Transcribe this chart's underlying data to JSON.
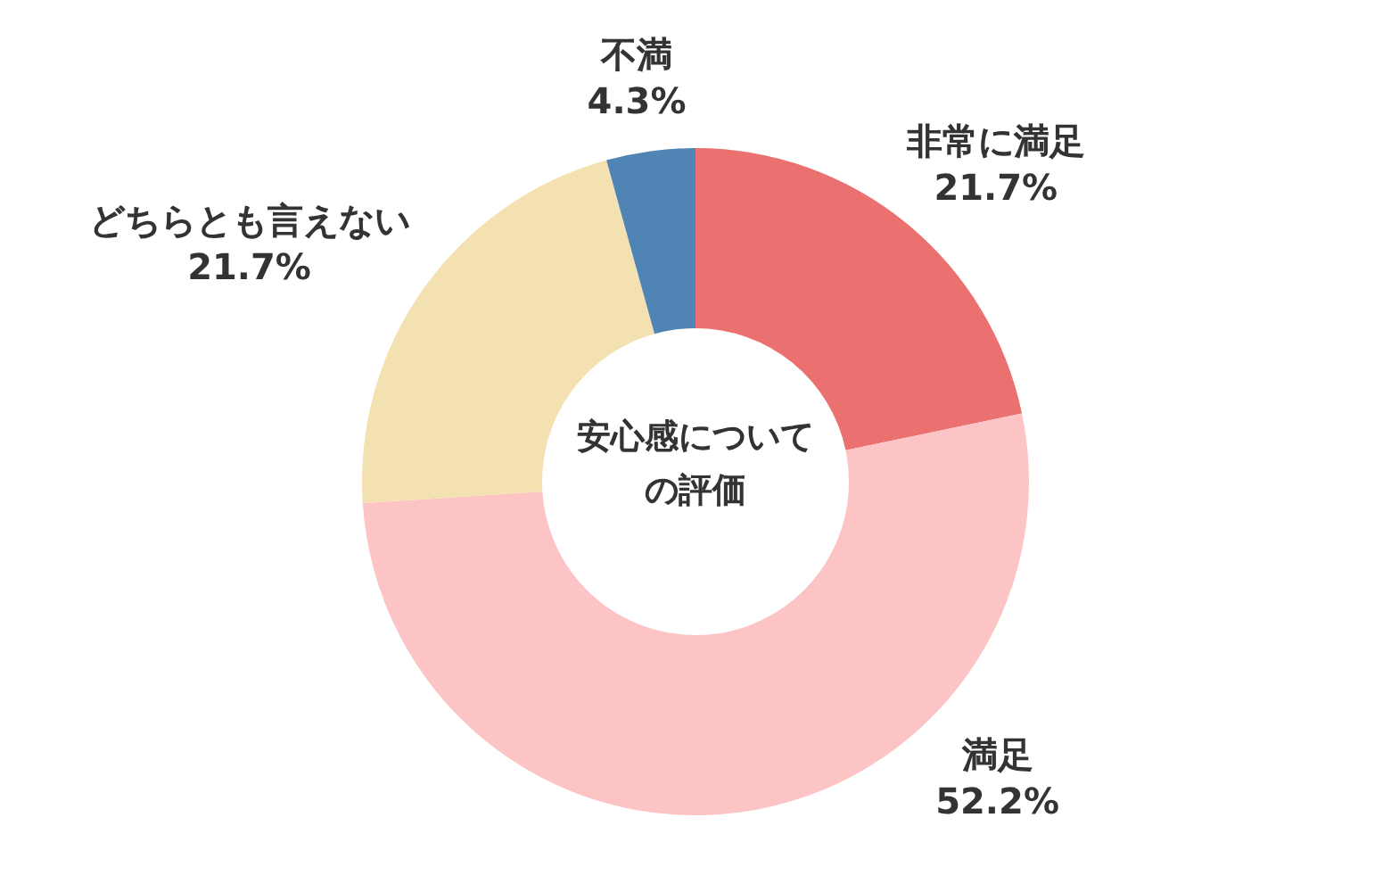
{
  "chart_data": {
    "type": "donut",
    "title": "安心感についての評価",
    "categories": [
      "非常に満足",
      "満足",
      "どちらとも言えない",
      "不満"
    ],
    "values": [
      21.7,
      52.2,
      21.7,
      4.3
    ],
    "colors": [
      "#eb7171",
      "#fdc4c6",
      "#f4e1b1",
      "#4f84b5"
    ],
    "value_labels": [
      "21.7%",
      "52.2%",
      "21.7%",
      "4.3%"
    ],
    "legend": false
  }
}
